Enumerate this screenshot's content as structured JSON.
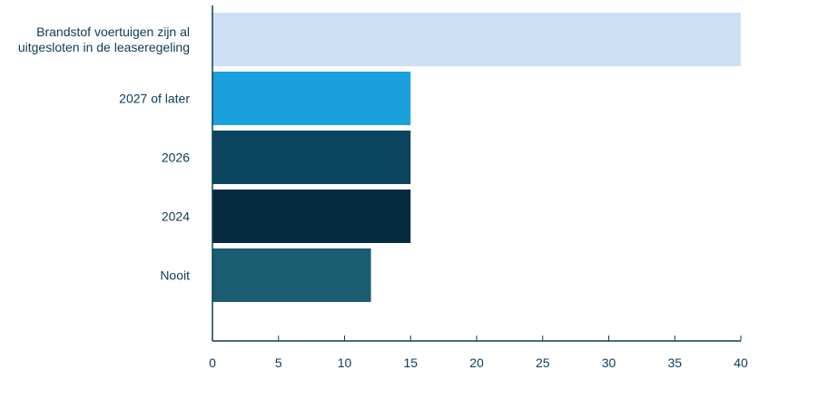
{
  "chart_data": {
    "type": "bar",
    "orientation": "horizontal",
    "categories": [
      [
        "Brandstof voertuigen zijn al",
        "uitgesloten in de leaseregeling"
      ],
      [
        "2027 of later"
      ],
      [
        "2026"
      ],
      [
        "2024"
      ],
      [
        "Nooit"
      ]
    ],
    "values": [
      40,
      15,
      15,
      15,
      12
    ],
    "colors": [
      "#cce0f5",
      "#1aa0dc",
      "#0c4560",
      "#062a40",
      "#1a5c70"
    ],
    "xlim": [
      0,
      40
    ],
    "xticks": [
      0,
      5,
      10,
      15,
      20,
      25,
      30,
      35,
      40
    ],
    "title": "",
    "xlabel": "",
    "ylabel": "",
    "grid": false,
    "legend": "none"
  }
}
